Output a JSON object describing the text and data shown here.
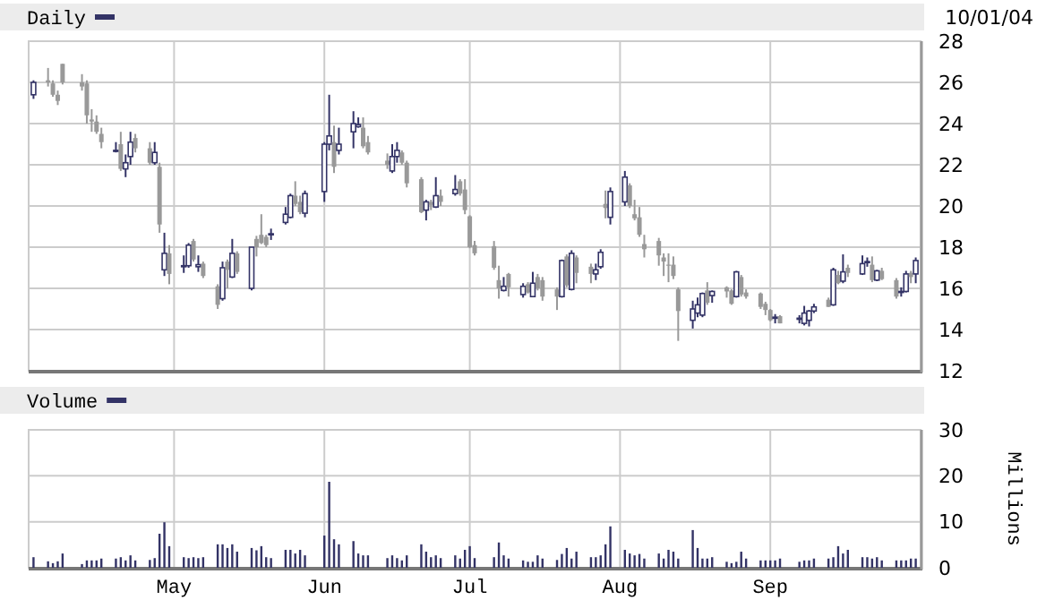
{
  "chart_data": [
    {
      "type": "candlestick",
      "title": "Daily",
      "annotations": [
        "10/01/04"
      ],
      "tick_labels": "y",
      "grid": true,
      "colors": [
        "#333366",
        "#999999",
        "#999999",
        "#999999",
        "#999999",
        "#999999",
        "#999999",
        "#999999",
        "#999999",
        "#999999",
        "#333366",
        "#999999",
        "#333366",
        "#333366",
        "#999999",
        "#999999",
        "#333366",
        "#999999",
        "#333366",
        "#999999",
        "#333366",
        "#333366",
        "#999999",
        "#333366",
        "#999999",
        "#999999",
        "#333366",
        "#999999",
        "#333366",
        "#999999",
        "#333366",
        "#999999",
        "#999999",
        "#999999",
        "#333366",
        "#333366",
        "#333366",
        "#999999",
        "#999999",
        "#333366",
        "#333366",
        "#333366",
        "#999999",
        "#333366",
        "#333366",
        "#333366",
        "#999999",
        "#999999",
        "#999999",
        "#333366",
        "#333366",
        "#999999",
        "#999999",
        "#999999",
        "#333366",
        "#999999",
        "#333366",
        "#999999",
        "#333366",
        "#999999",
        "#999999",
        "#999999",
        "#999999",
        "#999999",
        "#999999",
        "#333366",
        "#999999",
        "#333366",
        "#999999",
        "#333366",
        "#999999",
        "#999999",
        "#999999",
        "#333366",
        "#999999",
        "#333366",
        "#999999",
        "#999999",
        "#333366",
        "#333366",
        "#999999",
        "#333366",
        "#333366",
        "#999999",
        "#999999",
        "#999999",
        "#999999",
        "#999999",
        "#999999",
        "#999999",
        "#999999",
        "#999999",
        "#333366",
        "#333366",
        "#333366",
        "#999999",
        "#333366",
        "#999999",
        "#999999",
        "#333366",
        "#999999",
        "#999999",
        "#999999",
        "#999999",
        "#999999",
        "#333366",
        "#999999",
        "#333366",
        "#333366",
        "#333366",
        "#333366",
        "#999999",
        "#333366",
        "#999999",
        "#333366",
        "#999999",
        "#333366",
        "#333366",
        "#999999",
        "#333366",
        "#999999",
        "#999999",
        "#333366",
        "#333366",
        "#999999",
        "#333366"
      ],
      "x": [
        "--04-02",
        "--04-05",
        "--04-06",
        "--04-07",
        "--04-08",
        "--04-12",
        "--04-13",
        "--04-14",
        "--04-15",
        "--04-16",
        "--04-19",
        "--04-20",
        "--04-21",
        "--04-22",
        "--04-23",
        "--04-26",
        "--04-27",
        "--04-28",
        "--04-29",
        "--04-30",
        "--05-03",
        "--05-04",
        "--05-05",
        "--05-06",
        "--05-07",
        "--05-10",
        "--05-11",
        "--05-12",
        "--05-13",
        "--05-14",
        "--05-17",
        "--05-18",
        "--05-19",
        "--05-20",
        "--05-21",
        "--05-24",
        "--05-25",
        "--05-26",
        "--05-27",
        "--05-28",
        "--06-01",
        "--06-02",
        "--06-03",
        "--06-04",
        "--06-07",
        "--06-08",
        "--06-09",
        "--06-10",
        "--06-14",
        "--06-15",
        "--06-16",
        "--06-17",
        "--06-18",
        "--06-21",
        "--06-22",
        "--06-23",
        "--06-24",
        "--06-25",
        "--06-28",
        "--06-29",
        "--06-30",
        "--07-01",
        "--07-02",
        "--07-06",
        "--07-07",
        "--07-08",
        "--07-09",
        "--07-12",
        "--07-13",
        "--07-14",
        "--07-15",
        "--07-16",
        "--07-19",
        "--07-20",
        "--07-21",
        "--07-22",
        "--07-23",
        "--07-26",
        "--07-27",
        "--07-28",
        "--07-29",
        "--07-30",
        "--08-02",
        "--08-03",
        "--08-04",
        "--08-05",
        "--08-06",
        "--08-09",
        "--08-10",
        "--08-11",
        "--08-12",
        "--08-13",
        "--08-16",
        "--08-17",
        "--08-18",
        "--08-19",
        "--08-20",
        "--08-23",
        "--08-24",
        "--08-25",
        "--08-26",
        "--08-27",
        "--08-30",
        "--08-31",
        "--09-01",
        "--09-02",
        "--09-03",
        "--09-07",
        "--09-08",
        "--09-09",
        "--09-10",
        "--09-13",
        "--09-14",
        "--09-15",
        "--09-16",
        "--09-17",
        "--09-20",
        "--09-21",
        "--09-22",
        "--09-23",
        "--09-24",
        "--09-27",
        "--09-28",
        "--09-29",
        "--09-30",
        "--10-01"
      ],
      "xlim": [
        "--04-01",
        "--10-02"
      ],
      "xticks": [
        {
          "value": "--05-01",
          "label": null
        },
        {
          "value": "--06-01",
          "label": null
        },
        {
          "value": "--07-01",
          "label": null
        },
        {
          "value": "--08-01",
          "label": null
        },
        {
          "value": "--09-01",
          "label": null
        }
      ],
      "ylim": [
        12,
        28
      ],
      "yticks": [
        12,
        14,
        16,
        18,
        20,
        22,
        24,
        26,
        28
      ],
      "ohlc": [
        [
          25.4,
          26.1,
          25.2,
          26.0
        ],
        [
          26.1,
          26.7,
          25.8,
          26.0
        ],
        [
          25.95,
          26.1,
          25.3,
          25.4
        ],
        [
          25.4,
          25.6,
          24.9,
          25.1
        ],
        [
          26.9,
          26.9,
          25.9,
          26.0
        ],
        [
          26.0,
          26.4,
          25.6,
          25.8
        ],
        [
          25.95,
          26.1,
          24.0,
          24.4
        ],
        [
          24.2,
          24.7,
          23.6,
          24.1
        ],
        [
          24.1,
          24.4,
          23.5,
          23.6
        ],
        [
          23.5,
          23.8,
          22.8,
          23.1
        ],
        [
          22.65,
          23.1,
          22.6,
          22.7
        ],
        [
          23.0,
          23.6,
          21.7,
          21.8
        ],
        [
          21.8,
          22.5,
          21.4,
          22.1
        ],
        [
          22.4,
          23.6,
          22.0,
          23.1
        ],
        [
          23.3,
          23.5,
          22.6,
          22.8
        ],
        [
          22.8,
          23.1,
          22.0,
          22.1
        ],
        [
          22.1,
          23.1,
          22.0,
          22.6
        ],
        [
          21.9,
          22.1,
          18.7,
          19.1
        ],
        [
          16.9,
          18.7,
          16.6,
          17.7
        ],
        [
          17.7,
          18.1,
          16.2,
          16.7
        ],
        [
          17.05,
          17.6,
          16.75,
          17.1
        ],
        [
          17.1,
          18.2,
          17.0,
          18.1
        ],
        [
          18.3,
          18.4,
          17.3,
          17.4
        ],
        [
          17.05,
          17.6,
          16.8,
          17.15
        ],
        [
          17.2,
          17.3,
          16.5,
          16.6
        ],
        [
          16.1,
          16.2,
          15.0,
          15.2
        ],
        [
          15.5,
          17.3,
          15.4,
          17.0
        ],
        [
          17.3,
          17.4,
          16.0,
          16.9
        ],
        [
          16.55,
          18.4,
          16.5,
          17.7
        ],
        [
          17.7,
          17.8,
          16.7,
          16.8
        ],
        [
          16.0,
          18.0,
          15.9,
          18.0
        ],
        [
          18.4,
          18.55,
          17.55,
          18.0
        ],
        [
          18.6,
          19.6,
          18.15,
          18.2
        ],
        [
          18.5,
          18.6,
          18.0,
          18.1
        ],
        [
          18.6,
          18.9,
          18.35,
          18.65
        ],
        [
          19.2,
          19.95,
          19.1,
          19.6
        ],
        [
          19.45,
          20.6,
          19.4,
          20.5
        ],
        [
          20.5,
          21.2,
          20.0,
          20.1
        ],
        [
          20.2,
          20.5,
          19.6,
          19.7
        ],
        [
          19.65,
          20.75,
          19.45,
          20.6
        ],
        [
          20.7,
          23.1,
          20.2,
          23.0
        ],
        [
          23.0,
          25.4,
          22.7,
          23.4
        ],
        [
          23.1,
          23.9,
          21.6,
          21.9
        ],
        [
          22.7,
          23.8,
          22.5,
          23.0
        ],
        [
          23.6,
          24.6,
          22.8,
          24.0
        ],
        [
          23.85,
          24.3,
          23.8,
          23.95
        ],
        [
          23.8,
          24.3,
          22.8,
          22.9
        ],
        [
          23.1,
          23.4,
          22.5,
          22.6
        ],
        [
          22.2,
          22.55,
          21.8,
          22.0
        ],
        [
          21.7,
          23.0,
          21.6,
          22.4
        ],
        [
          22.4,
          23.1,
          22.1,
          22.7
        ],
        [
          22.6,
          22.7,
          22.0,
          22.1
        ],
        [
          22.1,
          22.2,
          20.9,
          21.1
        ],
        [
          21.3,
          21.4,
          19.65,
          19.7
        ],
        [
          19.8,
          20.3,
          19.3,
          20.2
        ],
        [
          20.2,
          20.3,
          19.8,
          20.05
        ],
        [
          19.95,
          21.4,
          19.9,
          20.5
        ],
        [
          20.5,
          20.8,
          20.0,
          20.2
        ],
        [
          20.6,
          21.5,
          20.5,
          20.8
        ],
        [
          21.2,
          21.3,
          20.5,
          20.6
        ],
        [
          20.8,
          21.3,
          19.6,
          19.8
        ],
        [
          19.5,
          19.55,
          17.95,
          18.0
        ],
        [
          18.1,
          18.3,
          17.6,
          17.7
        ],
        [
          18.05,
          18.3,
          16.9,
          17.0
        ],
        [
          16.4,
          17.1,
          15.5,
          16.0
        ],
        [
          15.9,
          16.55,
          15.85,
          16.1
        ],
        [
          16.7,
          16.75,
          15.6,
          16.05
        ],
        [
          15.7,
          16.25,
          15.55,
          16.1
        ],
        [
          16.2,
          16.3,
          15.75,
          15.8
        ],
        [
          15.6,
          16.8,
          15.6,
          16.25
        ],
        [
          16.55,
          16.7,
          15.9,
          16.0
        ],
        [
          16.4,
          16.55,
          15.4,
          15.6
        ],
        [
          15.95,
          16.05,
          14.95,
          15.6
        ],
        [
          15.6,
          17.4,
          15.55,
          17.35
        ],
        [
          17.55,
          17.65,
          16.05,
          16.15
        ],
        [
          15.95,
          17.85,
          15.9,
          17.7
        ],
        [
          17.5,
          17.6,
          16.25,
          16.75
        ],
        [
          17.05,
          17.2,
          16.25,
          16.7
        ],
        [
          16.7,
          17.2,
          16.4,
          16.9
        ],
        [
          17.05,
          17.9,
          16.95,
          17.75
        ],
        [
          20.1,
          20.75,
          19.4,
          19.9
        ],
        [
          19.45,
          20.9,
          19.1,
          20.7
        ],
        [
          20.2,
          21.7,
          20.0,
          21.4
        ],
        [
          21.0,
          21.1,
          19.9,
          20.0
        ],
        [
          19.6,
          20.3,
          19.3,
          19.4
        ],
        [
          19.45,
          19.95,
          18.5,
          18.6
        ],
        [
          18.15,
          18.6,
          17.5,
          17.9
        ],
        [
          18.3,
          18.45,
          17.1,
          17.6
        ],
        [
          17.5,
          17.7,
          16.6,
          17.3
        ],
        [
          17.15,
          17.7,
          16.3,
          17.1
        ],
        [
          17.15,
          17.55,
          16.45,
          16.6
        ],
        [
          15.95,
          16.05,
          13.45,
          14.9
        ],
        [
          14.45,
          15.4,
          14.05,
          15.0
        ],
        [
          14.8,
          15.55,
          14.6,
          15.2
        ],
        [
          14.7,
          15.8,
          14.6,
          15.75
        ],
        [
          15.9,
          16.3,
          15.2,
          15.3
        ],
        [
          15.65,
          15.9,
          15.3,
          15.85
        ],
        [
          16.05,
          16.1,
          15.55,
          15.85
        ],
        [
          15.9,
          15.95,
          15.2,
          15.25
        ],
        [
          15.6,
          16.85,
          15.55,
          16.8
        ],
        [
          16.55,
          16.65,
          15.6,
          15.7
        ],
        [
          15.8,
          15.95,
          15.5,
          15.6
        ],
        [
          15.75,
          15.8,
          15.0,
          15.1
        ],
        [
          15.25,
          15.35,
          14.7,
          14.95
        ],
        [
          14.95,
          15.0,
          14.4,
          14.45
        ],
        [
          14.55,
          14.75,
          14.3,
          14.6
        ],
        [
          14.65,
          14.7,
          14.3,
          14.3
        ],
        [
          14.5,
          14.7,
          14.3,
          14.55
        ],
        [
          14.3,
          15.15,
          14.2,
          14.8
        ],
        [
          14.45,
          14.95,
          14.15,
          14.9
        ],
        [
          14.9,
          15.25,
          14.8,
          15.1
        ],
        [
          15.45,
          15.55,
          15.1,
          15.1
        ],
        [
          15.2,
          17.0,
          15.15,
          16.9
        ],
        [
          16.65,
          16.85,
          16.2,
          16.25
        ],
        [
          16.35,
          17.65,
          16.25,
          16.8
        ],
        [
          17.0,
          17.15,
          16.55,
          16.75
        ],
        [
          16.7,
          17.6,
          16.65,
          17.2
        ],
        [
          17.25,
          17.5,
          17.05,
          17.3
        ],
        [
          17.15,
          17.55,
          16.3,
          16.4
        ],
        [
          16.4,
          16.9,
          16.35,
          16.85
        ],
        [
          16.85,
          17.0,
          16.4,
          16.45
        ],
        [
          16.4,
          16.5,
          15.5,
          15.6
        ],
        [
          15.8,
          16.05,
          15.6,
          15.85
        ],
        [
          15.85,
          16.85,
          15.8,
          16.7
        ],
        [
          16.75,
          16.85,
          16.25,
          16.55
        ],
        [
          16.7,
          17.5,
          16.25,
          17.35
        ]
      ]
    },
    {
      "type": "bar",
      "title": "Volume",
      "ylabel": "Millions",
      "color": "#333366",
      "grid": true,
      "x": [
        "--04-02",
        "--04-05",
        "--04-06",
        "--04-07",
        "--04-08",
        "--04-12",
        "--04-13",
        "--04-14",
        "--04-15",
        "--04-16",
        "--04-19",
        "--04-20",
        "--04-21",
        "--04-22",
        "--04-23",
        "--04-26",
        "--04-27",
        "--04-28",
        "--04-29",
        "--04-30",
        "--05-03",
        "--05-04",
        "--05-05",
        "--05-06",
        "--05-07",
        "--05-10",
        "--05-11",
        "--05-12",
        "--05-13",
        "--05-14",
        "--05-17",
        "--05-18",
        "--05-19",
        "--05-20",
        "--05-21",
        "--05-24",
        "--05-25",
        "--05-26",
        "--05-27",
        "--05-28",
        "--06-01",
        "--06-02",
        "--06-03",
        "--06-04",
        "--06-07",
        "--06-08",
        "--06-09",
        "--06-10",
        "--06-14",
        "--06-15",
        "--06-16",
        "--06-17",
        "--06-18",
        "--06-21",
        "--06-22",
        "--06-23",
        "--06-24",
        "--06-25",
        "--06-28",
        "--06-29",
        "--06-30",
        "--07-01",
        "--07-02",
        "--07-06",
        "--07-07",
        "--07-08",
        "--07-09",
        "--07-12",
        "--07-13",
        "--07-14",
        "--07-15",
        "--07-16",
        "--07-19",
        "--07-20",
        "--07-21",
        "--07-22",
        "--07-23",
        "--07-26",
        "--07-27",
        "--07-28",
        "--07-29",
        "--07-30",
        "--08-02",
        "--08-03",
        "--08-04",
        "--08-05",
        "--08-06",
        "--08-09",
        "--08-10",
        "--08-11",
        "--08-12",
        "--08-13",
        "--08-16",
        "--08-17",
        "--08-18",
        "--08-19",
        "--08-20",
        "--08-23",
        "--08-24",
        "--08-25",
        "--08-26",
        "--08-27",
        "--08-30",
        "--08-31",
        "--09-01",
        "--09-02",
        "--09-03",
        "--09-07",
        "--09-08",
        "--09-09",
        "--09-10",
        "--09-13",
        "--09-14",
        "--09-15",
        "--09-16",
        "--09-17",
        "--09-20",
        "--09-21",
        "--09-22",
        "--09-23",
        "--09-24",
        "--09-27",
        "--09-28",
        "--09-29",
        "--09-30",
        "--10-01"
      ],
      "xlim": [
        "--04-01",
        "--10-02"
      ],
      "xticks": [
        {
          "value": "--05-01",
          "label": "May"
        },
        {
          "value": "--06-01",
          "label": "Jun"
        },
        {
          "value": "--07-01",
          "label": "Jul"
        },
        {
          "value": "--08-01",
          "label": "Aug"
        },
        {
          "value": "--09-01",
          "label": "Sep"
        }
      ],
      "ylim": [
        0,
        30
      ],
      "yticks": [
        0,
        10,
        20,
        30
      ],
      "values": [
        2.3,
        1.4,
        1.0,
        1.4,
        3.1,
        0.8,
        1.6,
        1.6,
        1.6,
        2.0,
        2.0,
        2.3,
        1.6,
        2.7,
        1.6,
        1.7,
        2.1,
        7.4,
        9.9,
        4.7,
        2.3,
        2.1,
        2.3,
        2.1,
        2.3,
        5.1,
        5.1,
        4.3,
        5.1,
        3.5,
        4.3,
        3.8,
        4.7,
        2.3,
        2.1,
        3.9,
        3.9,
        3.1,
        3.9,
        2.7,
        7.0,
        18.7,
        6.2,
        5.1,
        5.8,
        3.1,
        2.7,
        2.7,
        2.1,
        2.7,
        2.1,
        1.6,
        2.7,
        5.1,
        3.5,
        2.3,
        2.7,
        2.1,
        2.7,
        2.0,
        3.9,
        4.7,
        2.1,
        2.3,
        5.5,
        2.7,
        2.0,
        1.6,
        1.3,
        1.3,
        2.7,
        2.0,
        1.7,
        3.0,
        4.3,
        2.0,
        3.5,
        2.3,
        2.3,
        2.7,
        5.1,
        9.0,
        3.9,
        3.1,
        2.7,
        3.0,
        2.0,
        3.1,
        2.0,
        3.9,
        3.5,
        2.0,
        8.2,
        4.3,
        2.0,
        2.0,
        2.3,
        1.3,
        1.0,
        1.3,
        3.5,
        2.0,
        1.6,
        1.6,
        1.6,
        1.6,
        2.0,
        1.3,
        1.6,
        1.6,
        2.0,
        2.0,
        2.3,
        4.7,
        3.1,
        3.9,
        2.3,
        2.3,
        2.0,
        2.3,
        1.6,
        1.6,
        1.6,
        1.6,
        2.0,
        2.0
      ]
    }
  ]
}
